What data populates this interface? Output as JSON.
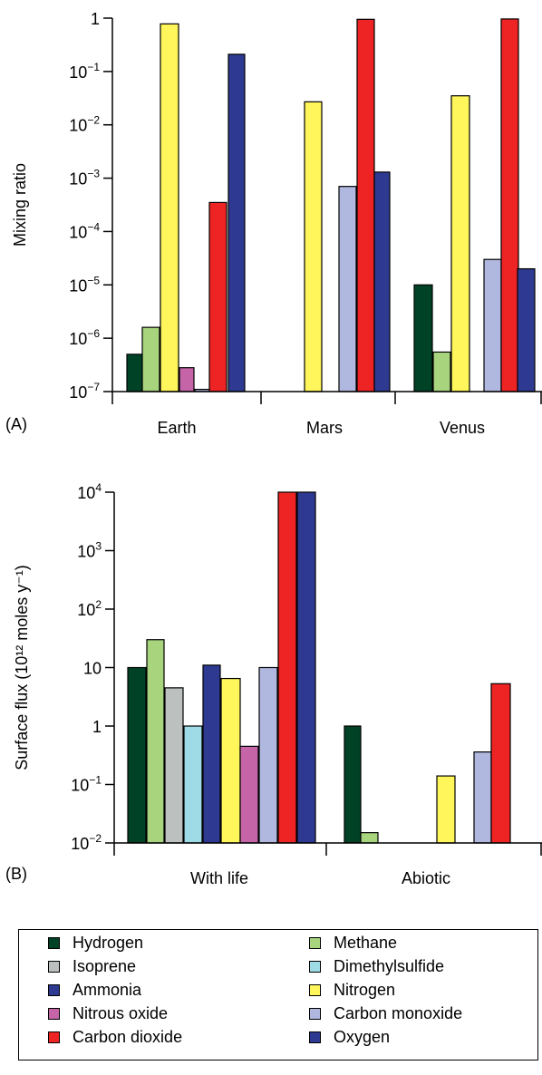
{
  "colors": {
    "Hydrogen": "#004226",
    "Methane": "#a8d47e",
    "Isoprene": "#bcc0bf",
    "Dimethylsulfide": "#9fdbe6",
    "Ammonia": "#2e3a91",
    "Nitrogen": "#fff65c",
    "Nitrous oxide": "#c565a8",
    "Carbon monoxide": "#b0b8e0",
    "Carbon dioxide": "#ee2424",
    "Oxygen": "#2e3a91"
  },
  "legend": {
    "items": [
      "Hydrogen",
      "Methane",
      "Isoprene",
      "Dimethylsulfide",
      "Ammonia",
      "Nitrogen",
      "Nitrous oxide",
      "Carbon monoxide",
      "Carbon dioxide",
      "Oxygen"
    ]
  },
  "chart_data": [
    {
      "type": "bar",
      "panel_label": "(A)",
      "ylabel": "Mixing ratio",
      "yscale": "log",
      "ylim": [
        1e-07,
        1
      ],
      "yticks": [
        1e-07,
        1e-06,
        1e-05,
        0.0001,
        0.001,
        0.01,
        0.1,
        1
      ],
      "ytick_labels": [
        {
          "base": "10",
          "exp": "−7"
        },
        {
          "base": "10",
          "exp": "−6"
        },
        {
          "base": "10",
          "exp": "−5"
        },
        {
          "base": "10",
          "exp": "−4"
        },
        {
          "base": "10",
          "exp": "−3"
        },
        {
          "base": "10",
          "exp": "−2"
        },
        {
          "base": "10",
          "exp": "−1"
        },
        {
          "base": "1",
          "exp": ""
        }
      ],
      "categories": [
        "Earth",
        "Mars",
        "Venus"
      ],
      "groups": [
        {
          "category": "Earth",
          "bars": [
            {
              "gas": "Hydrogen",
              "value": 5e-07
            },
            {
              "gas": "Methane",
              "value": 1.6e-06
            },
            {
              "gas": "Nitrogen",
              "value": 0.78
            },
            {
              "gas": "Nitrous oxide",
              "value": 2.8e-07
            },
            {
              "gas": "Carbon monoxide",
              "value": 1.1e-07
            },
            {
              "gas": "Carbon dioxide",
              "value": 0.00035
            },
            {
              "gas": "Oxygen",
              "value": 0.21
            }
          ]
        },
        {
          "category": "Mars",
          "bars": [
            {
              "gas": "Nitrogen",
              "value": 0.027
            },
            {
              "gas": "Carbon monoxide",
              "value": 0.0007
            },
            {
              "gas": "Carbon dioxide",
              "value": 0.95
            },
            {
              "gas": "Oxygen",
              "value": 0.0013
            }
          ]
        },
        {
          "category": "Venus",
          "bars": [
            {
              "gas": "Hydrogen",
              "value": 1e-05
            },
            {
              "gas": "Methane",
              "value": 5.5e-07
            },
            {
              "gas": "Nitrogen",
              "value": 0.035
            },
            {
              "gas": "Carbon monoxide",
              "value": 3e-05
            },
            {
              "gas": "Carbon dioxide",
              "value": 0.965
            },
            {
              "gas": "Oxygen",
              "value": 2e-05
            }
          ]
        }
      ]
    },
    {
      "type": "bar",
      "panel_label": "(B)",
      "ylabel": "Surface flux (10¹² moles y⁻¹)",
      "yscale": "log",
      "ylim": [
        0.01,
        10000
      ],
      "yticks": [
        0.01,
        0.1,
        1,
        10,
        100,
        1000,
        10000
      ],
      "ytick_labels": [
        {
          "base": "10",
          "exp": "−2"
        },
        {
          "base": "10",
          "exp": "−1"
        },
        {
          "base": "1",
          "exp": ""
        },
        {
          "base": "10",
          "exp": ""
        },
        {
          "base": "10",
          "exp": "2"
        },
        {
          "base": "10",
          "exp": "3"
        },
        {
          "base": "10",
          "exp": "4"
        }
      ],
      "categories": [
        "With life",
        "Abiotic"
      ],
      "groups": [
        {
          "category": "With life",
          "bars": [
            {
              "gas": "Hydrogen",
              "value": 10
            },
            {
              "gas": "Methane",
              "value": 30
            },
            {
              "gas": "Isoprene",
              "value": 4.5
            },
            {
              "gas": "Dimethylsulfide",
              "value": 1
            },
            {
              "gas": "Ammonia",
              "value": 11
            },
            {
              "gas": "Nitrogen",
              "value": 6.5
            },
            {
              "gas": "Nitrous oxide",
              "value": 0.45
            },
            {
              "gas": "Carbon monoxide",
              "value": 10
            },
            {
              "gas": "Carbon dioxide",
              "value": 10000
            },
            {
              "gas": "Oxygen",
              "value": 10000
            }
          ]
        },
        {
          "category": "Abiotic",
          "bars": [
            {
              "gas": "Hydrogen",
              "value": 1
            },
            {
              "gas": "Methane",
              "value": 0.015
            },
            {
              "gas": "Nitrogen",
              "value": 0.14
            },
            {
              "gas": "Carbon monoxide",
              "value": 0.36
            },
            {
              "gas": "Carbon dioxide",
              "value": 5.3
            }
          ]
        }
      ]
    }
  ]
}
